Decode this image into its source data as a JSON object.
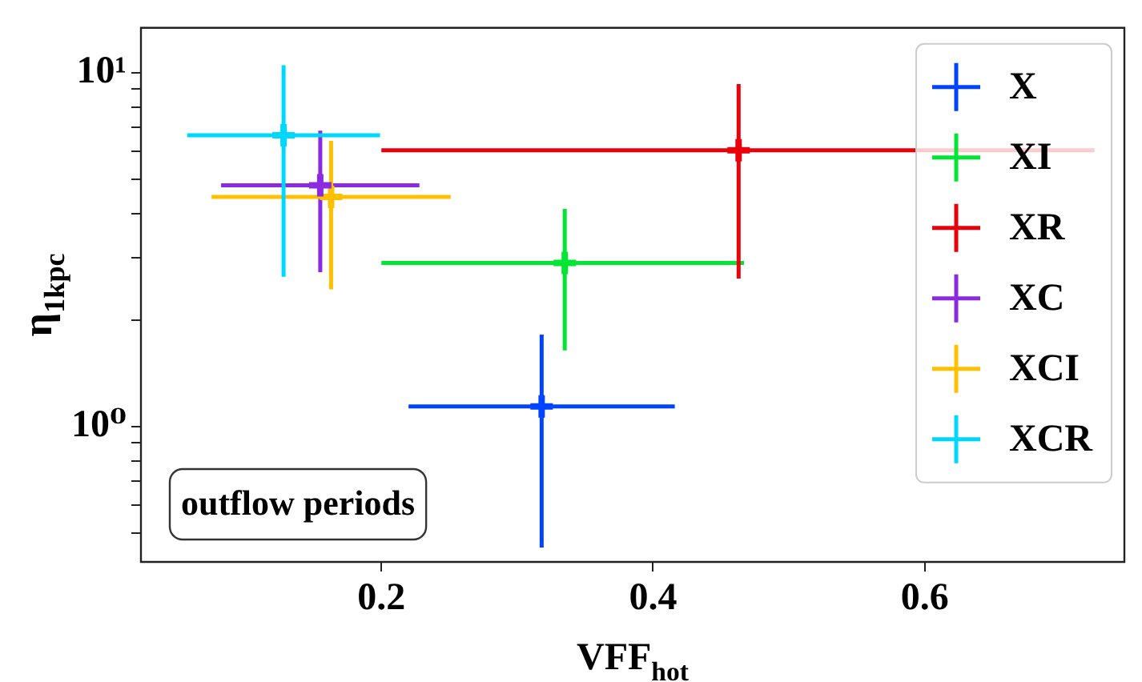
{
  "chart_data": {
    "type": "scatter",
    "xlabel": "VFF$_{hot}$",
    "ylabel": "η$_{1kpc}$",
    "log": "y",
    "marker": "cross",
    "legend": "top right",
    "grid": false,
    "xlim": [
      0.023,
      0.747
    ],
    "xticks": [
      0.2,
      0.4,
      0.6
    ],
    "ylim": [
      0.414,
      13.4
    ],
    "yticks": [
      {
        "value": 0.5,
        "label": null
      },
      {
        "value": 0.6,
        "label": null
      },
      {
        "value": 0.7,
        "label": null
      },
      {
        "value": 0.8,
        "label": null
      },
      {
        "value": 0.9,
        "label": null
      },
      {
        "value": 1,
        "label": "10⁰"
      },
      {
        "value": 2,
        "label": null
      },
      {
        "value": 3,
        "label": null
      },
      {
        "value": 4,
        "label": null
      },
      {
        "value": 5,
        "label": null
      },
      {
        "value": 6,
        "label": null
      },
      {
        "value": 7,
        "label": null
      },
      {
        "value": 8,
        "label": null
      },
      {
        "value": 9,
        "label": null
      },
      {
        "value": 10,
        "label": "10¹"
      }
    ],
    "annotations": [
      "outflow periods"
    ],
    "series": [
      {
        "name": "X",
        "color": "#0044ff",
        "x": [
          0.318
        ],
        "values": [
          1.14
        ],
        "xerrors": [
          [
            0.22,
            0.416
          ]
        ],
        "errors": [
          [
            0.455,
            1.82
          ]
        ]
      },
      {
        "name": "XI",
        "color": "#00e632",
        "x": [
          0.335
        ],
        "values": [
          2.9
        ],
        "xerrors": [
          [
            0.2,
            0.467
          ]
        ],
        "errors": [
          [
            1.64,
            4.12
          ]
        ]
      },
      {
        "name": "XR",
        "color": "#e8000b",
        "x": [
          0.463
        ],
        "values": [
          6.04
        ],
        "xerrors": [
          [
            0.2,
            0.725
          ]
        ],
        "errors": [
          [
            2.62,
            9.3
          ]
        ]
      },
      {
        "name": "XC",
        "color": "#8a2be2",
        "x": [
          0.155
        ],
        "values": [
          4.81
        ],
        "xerrors": [
          [
            0.082,
            0.228
          ]
        ],
        "errors": [
          [
            2.73,
            6.86
          ]
        ]
      },
      {
        "name": "XCI",
        "color": "#ffc000",
        "x": [
          0.163
        ],
        "values": [
          4.46
        ],
        "xerrors": [
          [
            0.075,
            0.251
          ]
        ],
        "errors": [
          [
            2.44,
            6.42
          ]
        ]
      },
      {
        "name": "XCR",
        "color": "#00d7ff",
        "x": [
          0.128
        ],
        "values": [
          6.66
        ],
        "xerrors": [
          [
            0.057,
            0.199
          ]
        ],
        "errors": [
          [
            2.65,
            10.5
          ]
        ]
      }
    ]
  }
}
